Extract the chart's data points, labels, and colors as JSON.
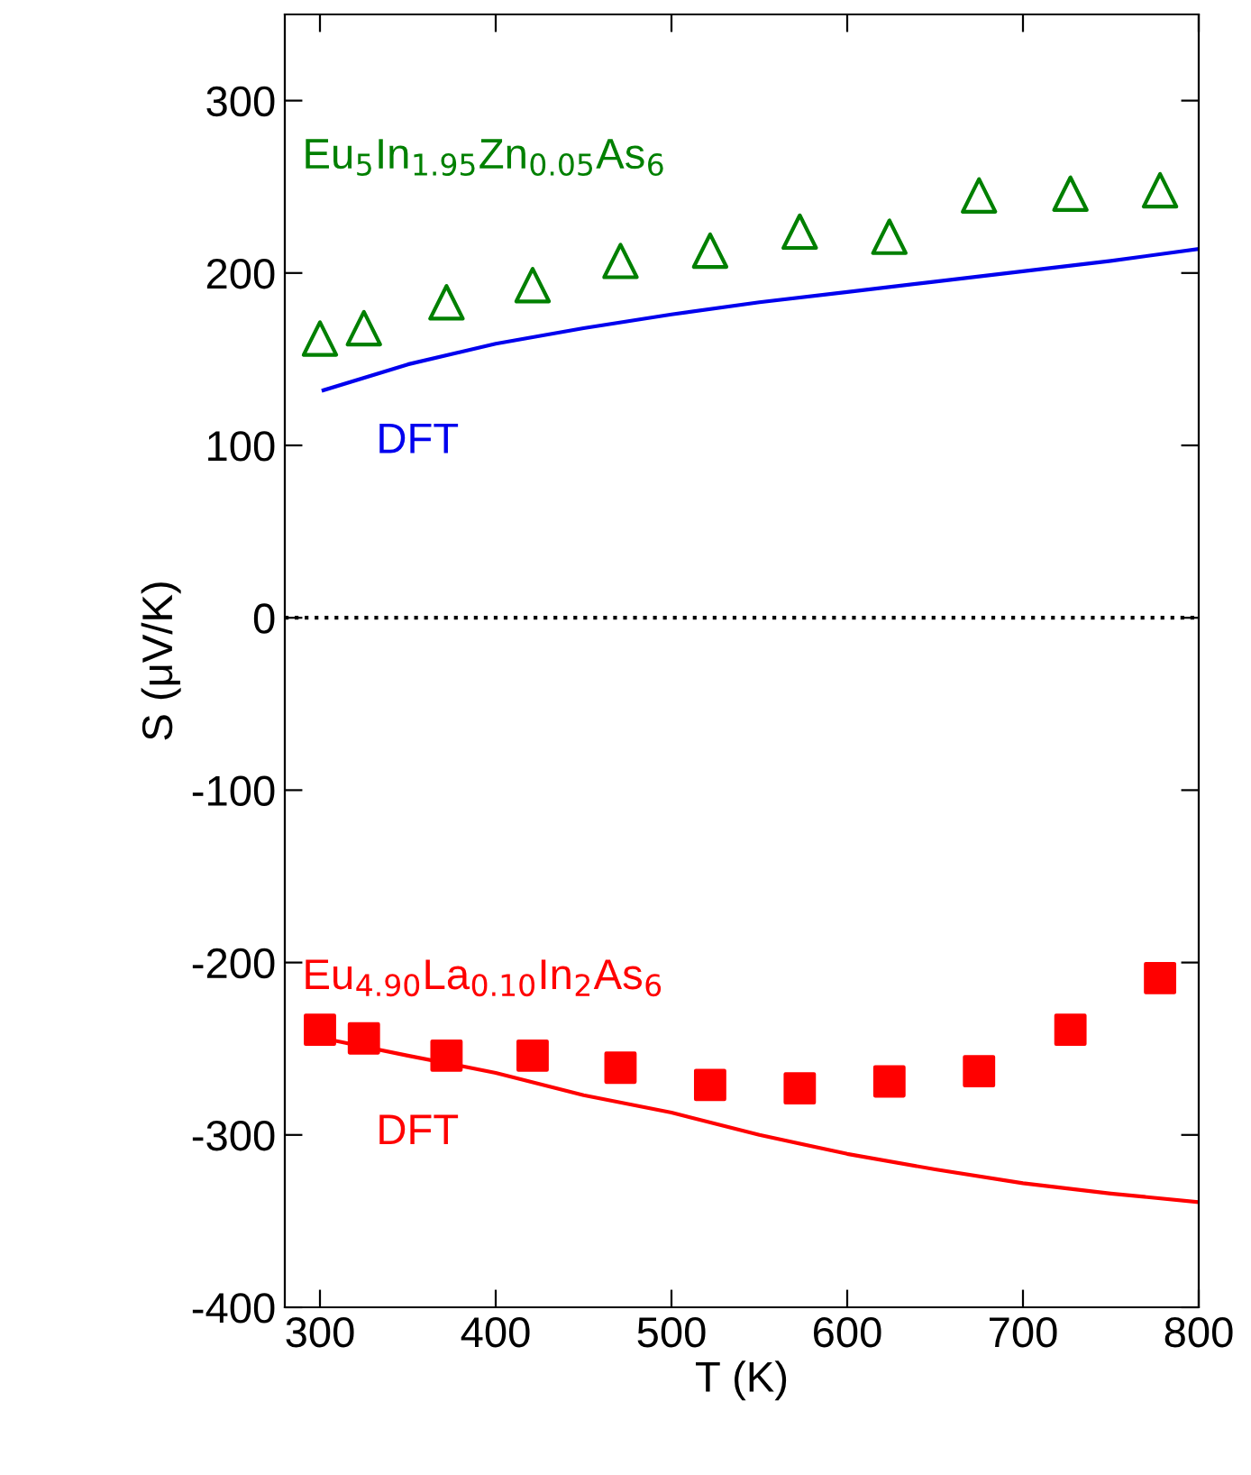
{
  "chart_data": {
    "type": "line",
    "xlabel": "T (K)",
    "ylabel": "S (μV/K)",
    "xlim": [
      280,
      800
    ],
    "ylim": [
      -400,
      350
    ],
    "xticks": [
      300,
      400,
      500,
      600,
      700,
      800
    ],
    "yticks": [
      -400,
      -300,
      -200,
      -100,
      0,
      100,
      200,
      300
    ],
    "grid": false,
    "legend": false,
    "ref_lines": [
      {
        "axis": "y",
        "value": 0,
        "color": "#000000",
        "line_style": "dotted"
      }
    ],
    "series": [
      {
        "name": "Eu$_{5}$In$_{1.95}$Zn$_{0.05}$As$_{6}$",
        "type": "scatter",
        "marker": "triangle",
        "color": "#008000",
        "x": [
          300,
          325,
          372,
          421,
          471,
          522,
          573,
          624,
          675,
          727,
          778
        ],
        "values": [
          162,
          168,
          183,
          193,
          207,
          213,
          224,
          221,
          245,
          246,
          248
        ]
      },
      {
        "name": "DFT",
        "line_style": "solid",
        "color": "#0000ee",
        "x": [
          302,
          350,
          400,
          450,
          500,
          550,
          600,
          650,
          700,
          750,
          800
        ],
        "values": [
          132,
          147,
          159,
          168,
          176,
          183,
          189,
          195,
          201,
          207,
          214
        ]
      },
      {
        "name": "Eu$_{4.90}$La$_{0.10}$In$_{2}$As$_{6}$",
        "type": "scatter",
        "marker": "square",
        "color": "#ff0000",
        "x": [
          300,
          325,
          372,
          421,
          471,
          522,
          573,
          624,
          675,
          727,
          778
        ],
        "values": [
          -239,
          -244,
          -254,
          -254,
          -261,
          -271,
          -273,
          -269,
          -263,
          -239,
          -209
        ]
      },
      {
        "name": "DFT",
        "line_style": "solid",
        "color": "#ff0000",
        "x": [
          302,
          350,
          400,
          450,
          500,
          550,
          600,
          650,
          700,
          750,
          800
        ],
        "values": [
          -244,
          -254,
          -264,
          -277,
          -287,
          -300,
          -311,
          -320,
          -328,
          -334,
          -339
        ]
      }
    ]
  }
}
